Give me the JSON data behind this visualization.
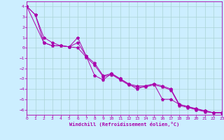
{
  "xlabel": "Windchill (Refroidissement éolien,°C)",
  "bg_color": "#cceeff",
  "line_color": "#aa00aa",
  "grid_color": "#aad4d4",
  "xmin": 0,
  "xmax": 23,
  "ymin": -6.5,
  "ymax": 4.5,
  "yticks": [
    4,
    3,
    2,
    1,
    0,
    -1,
    -2,
    -3,
    -4,
    -5,
    -6
  ],
  "xticks": [
    0,
    1,
    2,
    3,
    4,
    5,
    6,
    7,
    8,
    9,
    10,
    11,
    12,
    13,
    14,
    15,
    16,
    17,
    18,
    19,
    20,
    21,
    22,
    23
  ],
  "series1_x": [
    0,
    1,
    2,
    3,
    4,
    5,
    6,
    7,
    8,
    9,
    10,
    11,
    12,
    13,
    14,
    15,
    16,
    17,
    18,
    19,
    20,
    21,
    22,
    23
  ],
  "series1_y": [
    4.0,
    3.2,
    0.5,
    0.2,
    0.2,
    0.1,
    0.0,
    -0.9,
    -1.7,
    -2.8,
    -2.6,
    -3.1,
    -3.6,
    -3.8,
    -3.8,
    -3.6,
    -3.8,
    -4.1,
    -5.6,
    -5.8,
    -6.0,
    -6.2,
    -6.3,
    -6.3
  ],
  "series2_x": [
    0,
    1,
    2,
    3,
    4,
    5,
    6,
    7,
    8,
    9,
    10,
    11,
    12,
    13,
    14,
    15,
    16,
    17,
    18,
    19,
    20,
    21,
    22,
    23
  ],
  "series2_y": [
    4.0,
    3.2,
    1.0,
    0.5,
    0.2,
    0.1,
    1.0,
    -0.8,
    -1.5,
    -2.7,
    -2.5,
    -3.0,
    -3.5,
    -3.7,
    -3.7,
    -3.5,
    -5.0,
    -5.0,
    -5.5,
    -5.7,
    -6.0,
    -6.1,
    -6.3,
    -6.3
  ],
  "series3_x": [
    0,
    2,
    3,
    4,
    5,
    6,
    7,
    8,
    9,
    10,
    11,
    12,
    13,
    14,
    15,
    16,
    17,
    18,
    19,
    20,
    21,
    22,
    23
  ],
  "series3_y": [
    4.0,
    0.5,
    0.2,
    0.2,
    0.1,
    0.5,
    -0.8,
    -2.7,
    -3.1,
    -2.5,
    -3.0,
    -3.5,
    -4.0,
    -3.7,
    -3.5,
    -3.7,
    -4.0,
    -5.5,
    -5.7,
    -5.9,
    -6.1,
    -6.3,
    -6.3
  ]
}
